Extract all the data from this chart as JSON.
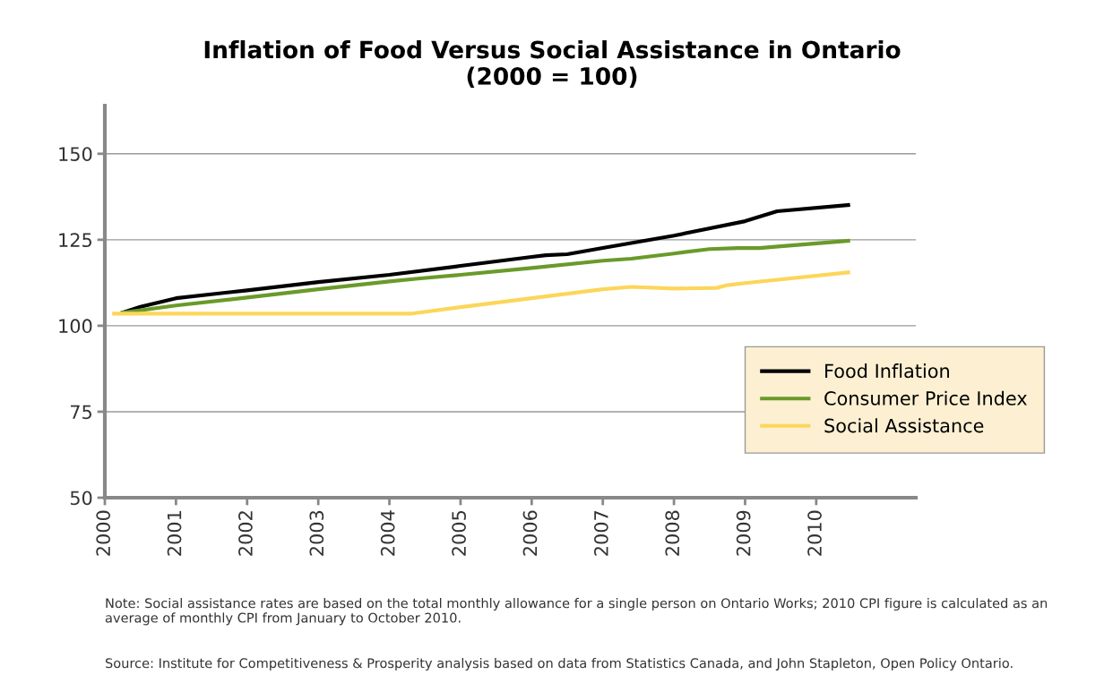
{
  "chart_data": {
    "type": "line",
    "title": "Inflation of Food Versus Social Assistance in Ontario\n(2000 = 100)",
    "series": [
      {
        "name": "Food Inflation",
        "color": "#000000",
        "x": [
          2000.25,
          2000.5,
          2001,
          2002,
          2003,
          2004,
          2005,
          2006,
          2006.2,
          2006.5,
          2007,
          2008,
          2009,
          2009.45,
          2010.45
        ],
        "values": [
          103.8,
          105.5,
          108,
          110.3,
          112.7,
          114.8,
          117.4,
          120,
          120.5,
          120.8,
          122.6,
          126.2,
          130.4,
          133.3,
          135.1
        ]
      },
      {
        "name": "Consumer Price Index",
        "color": "#6a9a2a",
        "x": [
          2000.25,
          2001,
          2002,
          2003,
          2004,
          2004.4,
          2005,
          2006,
          2007,
          2007.4,
          2008,
          2008.5,
          2008.9,
          2009.2,
          2009.5,
          2010.45
        ],
        "values": [
          103.8,
          105.9,
          108.2,
          110.6,
          112.9,
          113.7,
          114.8,
          116.8,
          118.9,
          119.5,
          121,
          122.3,
          122.6,
          122.6,
          123.1,
          124.7
        ]
      },
      {
        "name": "Social Assistance",
        "color": "#fcd65a",
        "x": [
          2000.13,
          2004.3,
          2005,
          2006,
          2007,
          2007.4,
          2008,
          2008.6,
          2008.75,
          2009,
          2010.45
        ],
        "values": [
          103.5,
          103.5,
          105.4,
          108,
          110.6,
          111.3,
          110.8,
          111,
          111.8,
          112.4,
          115.5
        ]
      }
    ],
    "xlim": [
      2000,
      2011.4
    ],
    "xticks": [
      2000,
      2001,
      2002,
      2003,
      2004,
      2005,
      2006,
      2007,
      2008,
      2009,
      2010
    ],
    "ylim": [
      50,
      164
    ],
    "yticks": [
      50,
      75,
      100,
      125,
      150
    ],
    "grid": "y",
    "legend": "lower right",
    "marker": "none",
    "line_style": "solid",
    "annotations": [
      "Note: Social assistance rates are based on the total monthly allowance for a single person on Ontario Works; 2010 CPI figure is calculated as an average of monthly CPI from January to October 2010.",
      "Source: Institute for Competitiveness & Prosperity analysis based on data from Statistics Canada, and John Stapleton, Open Policy Ontario."
    ]
  }
}
